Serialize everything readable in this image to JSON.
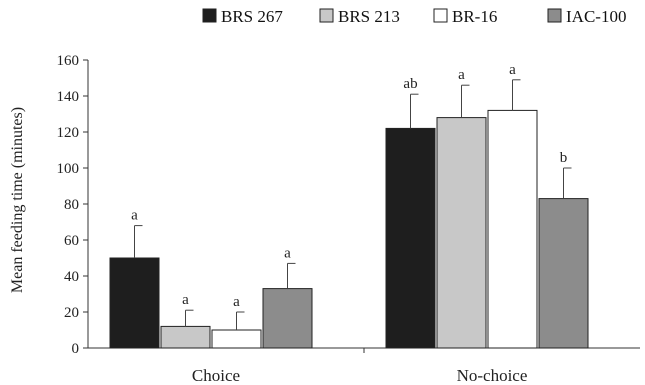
{
  "chart_data": {
    "type": "bar",
    "title": "",
    "xlabel": "",
    "ylabel": "Mean feeding time (minutes)",
    "ylim": [
      0,
      160
    ],
    "yticks": [
      0,
      20,
      40,
      60,
      80,
      100,
      120,
      140,
      160
    ],
    "grid": false,
    "legend_position": "top",
    "categories": [
      "Choice",
      "No-choice"
    ],
    "series": [
      {
        "name": "BRS 267",
        "color": "#1e1e1e",
        "values": [
          50,
          122
        ],
        "errors": [
          18,
          19
        ],
        "labels": [
          "a",
          "ab"
        ]
      },
      {
        "name": "BRS 213",
        "color": "#c8c8c8",
        "values": [
          12,
          128
        ],
        "errors": [
          9,
          18
        ],
        "labels": [
          "a",
          "a"
        ]
      },
      {
        "name": "BR-16",
        "color": "#ffffff",
        "values": [
          10,
          132
        ],
        "errors": [
          10,
          17
        ],
        "labels": [
          "a",
          "a"
        ]
      },
      {
        "name": "IAC-100",
        "color": "#8c8c8c",
        "values": [
          33,
          83
        ],
        "errors": [
          14,
          17
        ],
        "labels": [
          "a",
          "b"
        ]
      }
    ]
  }
}
